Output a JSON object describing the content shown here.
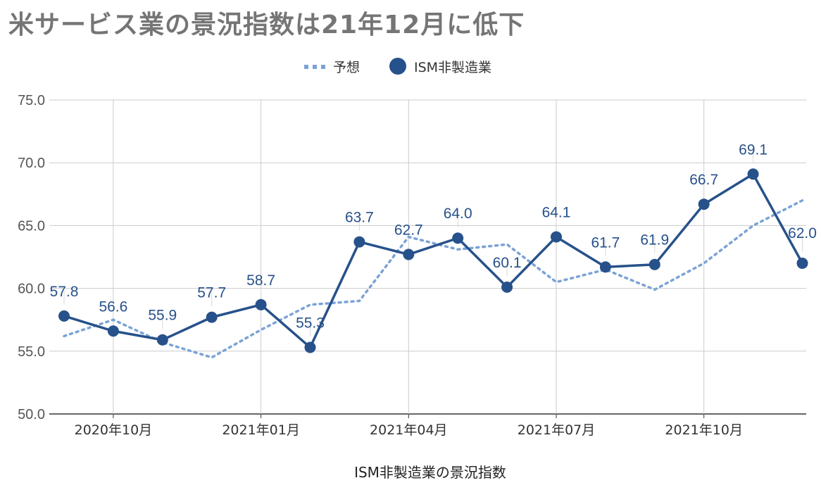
{
  "chart_data": {
    "type": "line",
    "title": "米サービス業の景況指数は21年12月に低下",
    "xlabel": "ISM非製造業の景況指数",
    "ylabel": "",
    "ylim": [
      50,
      75
    ],
    "yticks": [
      "50.0",
      "55.0",
      "60.0",
      "65.0",
      "70.0",
      "75.0"
    ],
    "x": [
      "2020年09月",
      "2020年10月",
      "2020年11月",
      "2020年12月",
      "2021年01月",
      "2021年02月",
      "2021年03月",
      "2021年04月",
      "2021年05月",
      "2021年06月",
      "2021年07月",
      "2021年08月",
      "2021年09月",
      "2021年10月",
      "2021年11月",
      "2021年12月"
    ],
    "xtick_labels": [
      "2020年10月",
      "2021年01月",
      "2021年04月",
      "2021年07月",
      "2021年10月"
    ],
    "grid": true,
    "legend": "top-center",
    "series": [
      {
        "name": "予想",
        "style": "dotted",
        "color": "#7ba3d6",
        "values": [
          56.2,
          57.5,
          55.7,
          54.5,
          56.7,
          58.7,
          59.0,
          64.1,
          63.1,
          63.5,
          60.5,
          61.5,
          59.9,
          62.0,
          65.0,
          67.0
        ]
      },
      {
        "name": "ISM非製造業",
        "style": "solid-markers",
        "color": "#27518a",
        "values": [
          57.8,
          56.6,
          55.9,
          57.7,
          58.7,
          55.3,
          63.7,
          62.7,
          64.0,
          60.1,
          64.1,
          61.7,
          61.9,
          66.7,
          69.1,
          62.0
        ],
        "data_labels": [
          "57.8",
          "56.6",
          "55.9",
          "57.7",
          "58.7",
          "55.3",
          "63.7",
          "62.7",
          "64.0",
          "60.1",
          "64.1",
          "61.7",
          "61.9",
          "66.7",
          "69.1",
          "62.0"
        ]
      }
    ]
  }
}
